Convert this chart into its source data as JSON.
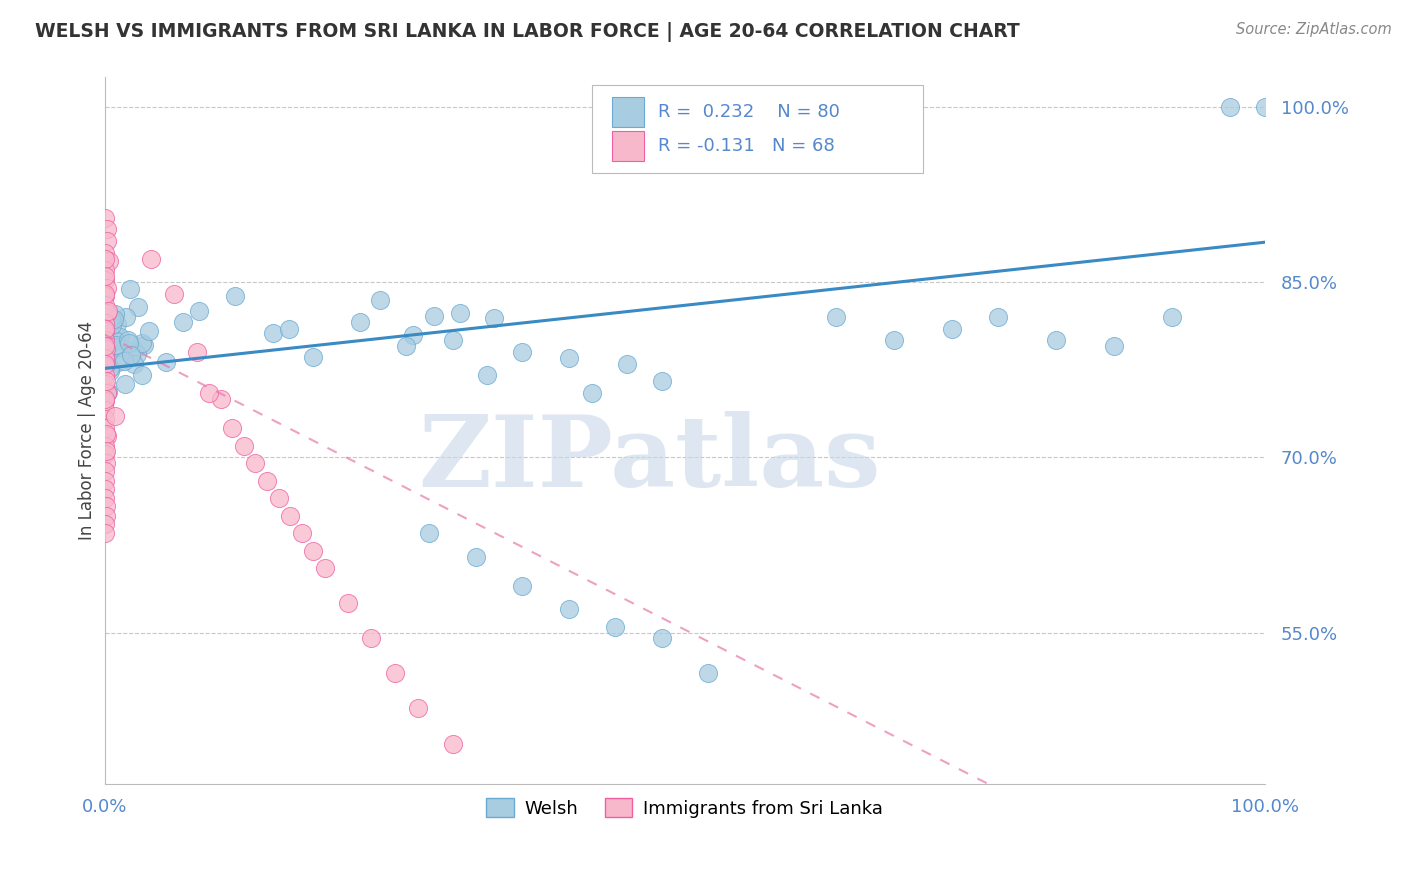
{
  "title": "WELSH VS IMMIGRANTS FROM SRI LANKA IN LABOR FORCE | AGE 20-64 CORRELATION CHART",
  "source": "Source: ZipAtlas.com",
  "ylabel": "In Labor Force | Age 20-64",
  "xlim": [
    0.0,
    1.0
  ],
  "ylim": [
    0.42,
    1.025
  ],
  "welsh_R": 0.232,
  "welsh_N": 80,
  "srilanka_R": -0.131,
  "srilanka_N": 68,
  "yticks": [
    0.55,
    0.7,
    0.85,
    1.0
  ],
  "ytick_labels": [
    "55.0%",
    "70.0%",
    "85.0%",
    "100.0%"
  ],
  "xtick_labels": [
    "0.0%",
    "100.0%"
  ],
  "watermark_text": "ZIPatlas",
  "watermark_color": "#c8d8e8",
  "background_color": "#ffffff",
  "welsh_face": "#a8cce0",
  "welsh_edge": "#6aaad4",
  "srilanka_face": "#f8b8cc",
  "srilanka_edge": "#f060a0",
  "trend_welsh_color": "#3a8ac4",
  "trend_srilanka_color": "#e878aa",
  "grid_color": "#c8c8c8",
  "title_color": "#333333",
  "source_color": "#888888",
  "tick_color": "#5588cc",
  "legend_box_color": "#dddddd",
  "welsh_trend_start_y": 0.776,
  "welsh_trend_end_y": 0.884,
  "sri_trend_start_y": 0.805,
  "sri_trend_end_y": 0.3
}
